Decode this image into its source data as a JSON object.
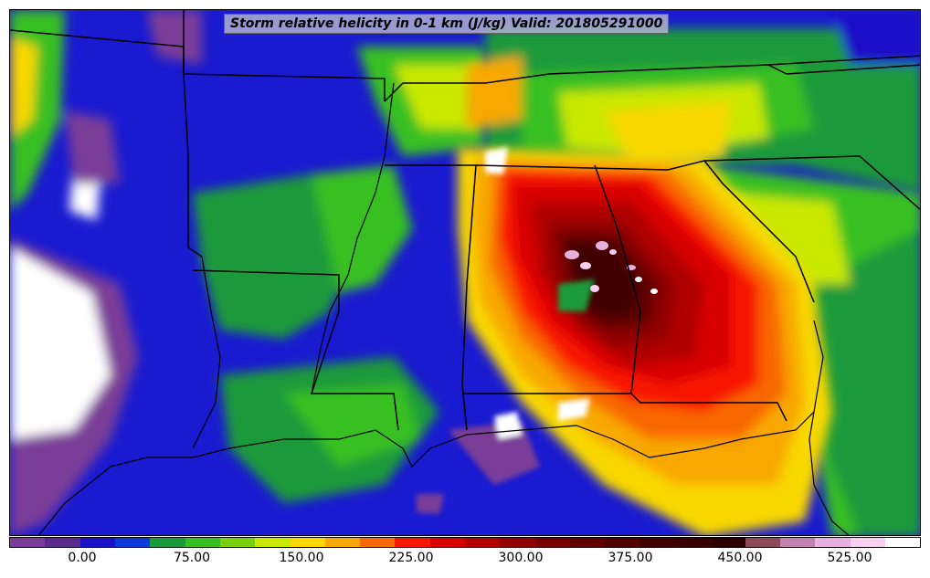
{
  "title": "Storm relative helicity in 0-1 km (J/kg) Valid: 201805291000",
  "colorbar": {
    "colors": [
      "#7a3c98",
      "#5a2a8a",
      "#1a10c8",
      "#0a3ad8",
      "#1a9a3a",
      "#38c020",
      "#7ad010",
      "#c8e800",
      "#f8d800",
      "#f8a800",
      "#f86800",
      "#f81800",
      "#d80000",
      "#b00000",
      "#900000",
      "#780000",
      "#600000",
      "#500000",
      "#400000",
      "#380000",
      "#2a0000",
      "#8a4a58",
      "#c080b0",
      "#e8b0e0",
      "#f8d0f0",
      "#ffffff"
    ],
    "tick_labels": [
      "0.00",
      "75.00",
      "150.00",
      "225.00",
      "300.00",
      "375.00",
      "450.00",
      "525.00"
    ]
  },
  "map": {
    "region": "Southeastern United States",
    "overlay": "state boundaries and coastlines"
  }
}
